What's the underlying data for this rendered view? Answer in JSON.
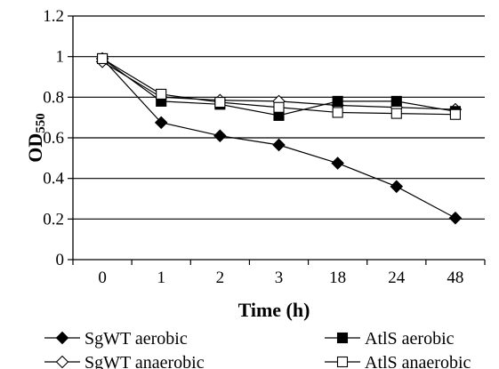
{
  "chart_data": {
    "type": "line",
    "xlabel": "Time (h)",
    "ylabel_main": "OD",
    "ylabel_sub": "550",
    "categories": [
      "0",
      "1",
      "2",
      "3",
      "18",
      "24",
      "48"
    ],
    "ylim": [
      0,
      1.2
    ],
    "yticks": [
      "0",
      "0.2",
      "0.4",
      "0.6",
      "0.8",
      "1",
      "1.2"
    ],
    "grid": true,
    "legend_position": "bottom",
    "series": [
      {
        "name": "SgWT aerobic",
        "marker": "diamond",
        "fill": "#000000",
        "values": [
          0.99,
          0.675,
          0.61,
          0.565,
          0.475,
          0.36,
          0.205
        ]
      },
      {
        "name": "SgWT anaerobic",
        "marker": "diamond",
        "fill": "#ffffff",
        "values": [
          0.975,
          0.8,
          0.785,
          0.78,
          0.76,
          0.75,
          0.74
        ]
      },
      {
        "name": "AtlS aerobic",
        "marker": "square",
        "fill": "#000000",
        "values": [
          0.99,
          0.78,
          0.765,
          0.71,
          0.78,
          0.78,
          0.73
        ]
      },
      {
        "name": "AtlS anaerobic",
        "marker": "square",
        "fill": "#ffffff",
        "values": [
          0.99,
          0.815,
          0.775,
          0.75,
          0.725,
          0.72,
          0.715
        ]
      }
    ]
  }
}
